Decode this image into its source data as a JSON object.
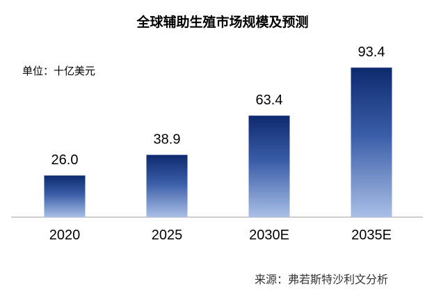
{
  "chart_data": {
    "type": "bar",
    "title": "全球辅助生殖市场规模及预测",
    "unit_label": "单位：十亿美元",
    "categories": [
      "2020",
      "2025",
      "2030E",
      "2035E"
    ],
    "values": [
      26.0,
      38.9,
      63.4,
      93.4
    ],
    "value_labels": [
      "26.0",
      "38.9",
      "63.4",
      "93.4"
    ],
    "ylim": [
      0,
      100
    ],
    "xlabel": "",
    "ylabel": "",
    "grid": false,
    "source": "来源：弗若斯特沙利文分析"
  },
  "colors": {
    "bar_top": "#0e2a6e",
    "bar_mid": "#3a5da8",
    "bar_bottom": "#a9bfe6",
    "axis": "#bfbfbf",
    "text": "#000000",
    "source_text": "#333333"
  }
}
